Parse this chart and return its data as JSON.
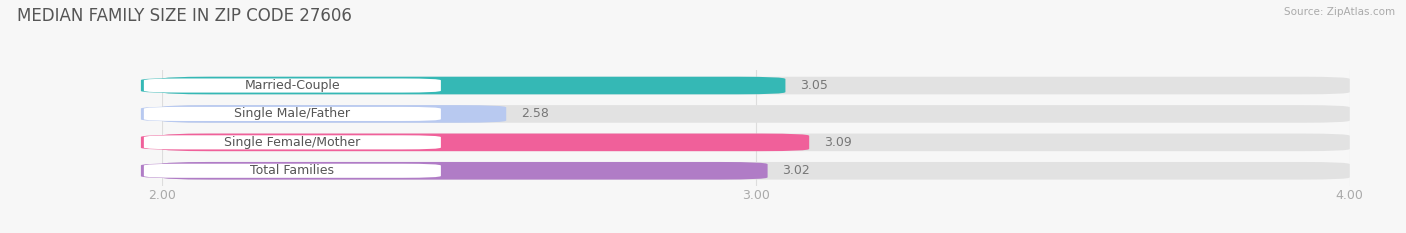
{
  "title": "MEDIAN FAMILY SIZE IN ZIP CODE 27606",
  "source": "Source: ZipAtlas.com",
  "categories": [
    "Married-Couple",
    "Single Male/Father",
    "Single Female/Mother",
    "Total Families"
  ],
  "values": [
    3.05,
    2.58,
    3.09,
    3.02
  ],
  "bar_colors": [
    "#35b8b5",
    "#b8c9f0",
    "#f0609a",
    "#b07cc6"
  ],
  "xlim": [
    2.0,
    4.0
  ],
  "xticks": [
    2.0,
    3.0,
    4.0
  ],
  "xtick_labels": [
    "2.00",
    "3.00",
    "4.00"
  ],
  "bar_height": 0.62,
  "background_color": "#f7f7f7",
  "title_fontsize": 12,
  "tick_fontsize": 9,
  "label_fontsize": 9,
  "value_fontsize": 9
}
